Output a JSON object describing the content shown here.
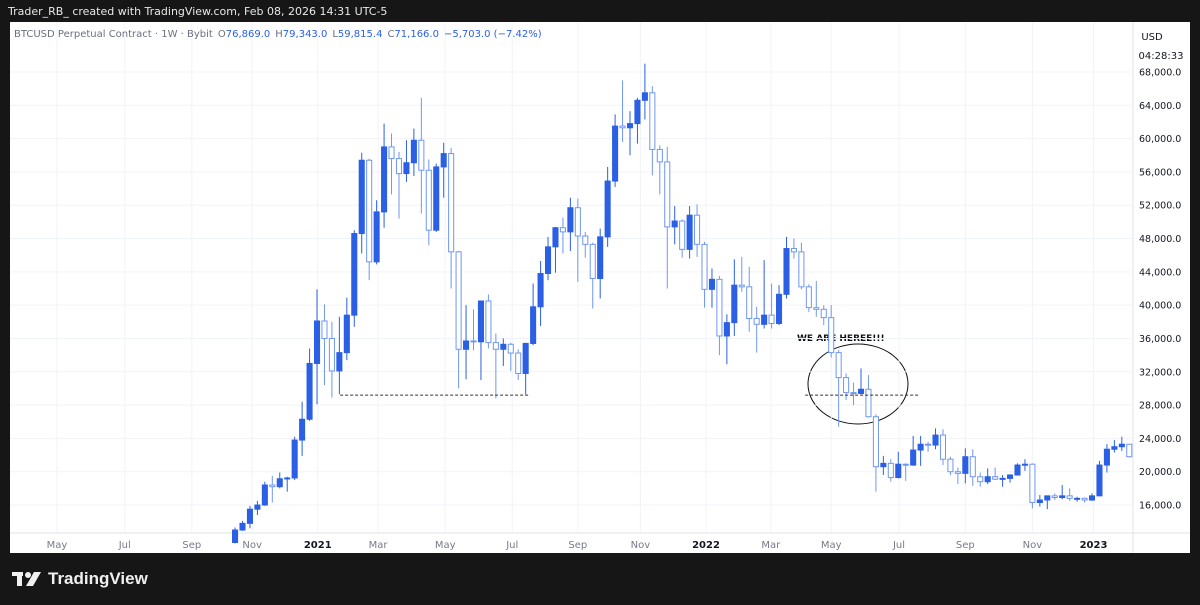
{
  "header": "Trader_RB_ created with TradingView.com, Feb 08, 2026 14:31 UTC-5",
  "footer_brand": "TradingView",
  "chart_data": {
    "type": "candlestick",
    "title": "BTCUSD Perpetual Contract · 1W · Bybit",
    "legend_values": [
      {
        "key": "O",
        "value": "76,869.0"
      },
      {
        "key": "H",
        "value": "79,343.0"
      },
      {
        "key": "L",
        "value": "59,815.4"
      },
      {
        "key": "C",
        "value": "71,166.0"
      }
    ],
    "change": "−5,703.0 (−7.42%)",
    "currency": "USD",
    "countdown": "04:28:33",
    "annotation": "WE ARE HEREE!!!",
    "up_color": "#2b5fe4",
    "down_color": "#6f97f2",
    "grid": true,
    "xlim": [
      -30.2,
      120.5
    ],
    "ylim": [
      12640,
      72080
    ],
    "xticks": [
      {
        "value": -23.9,
        "label": "May"
      },
      {
        "value": -14.8,
        "label": "Jul"
      },
      {
        "value": -5.8,
        "label": "Sep"
      },
      {
        "value": 2.3,
        "label": "Nov"
      },
      {
        "value": 11.1,
        "label": "2021"
      },
      {
        "value": 19.2,
        "label": "Mar"
      },
      {
        "value": 28.2,
        "label": "May"
      },
      {
        "value": 37.2,
        "label": "Jul"
      },
      {
        "value": 46,
        "label": "Sep"
      },
      {
        "value": 54.4,
        "label": "Nov"
      },
      {
        "value": 63.2,
        "label": "2022"
      },
      {
        "value": 71.9,
        "label": "Mar"
      },
      {
        "value": 80,
        "label": "May"
      },
      {
        "value": 89.1,
        "label": "Jul"
      },
      {
        "value": 98,
        "label": "Sep"
      },
      {
        "value": 107,
        "label": "Nov"
      },
      {
        "value": 115.2,
        "label": "2023"
      }
    ],
    "yticks": [
      {
        "value": 16000,
        "label": "16,000.0"
      },
      {
        "value": 20000,
        "label": "20,000.0"
      },
      {
        "value": 24000,
        "label": "24,000.0"
      },
      {
        "value": 28000,
        "label": "28,000.0"
      },
      {
        "value": 32000,
        "label": "32,000.0"
      },
      {
        "value": 36000,
        "label": "36,000.0"
      },
      {
        "value": 40000,
        "label": "40,000.0"
      },
      {
        "value": 44000,
        "label": "44,000.0"
      },
      {
        "value": 48000,
        "label": "48,000.0"
      },
      {
        "value": 52000,
        "label": "52,000.0"
      },
      {
        "value": 56000,
        "label": "56,000.0"
      },
      {
        "value": 60000,
        "label": "60,000.0"
      },
      {
        "value": 64000,
        "label": "64,000.0"
      },
      {
        "value": 68000,
        "label": "68,000.0"
      }
    ],
    "hline": {
      "value": 29200,
      "x_ranges": [
        [
          14.1,
          39.6
        ],
        [
          76.5,
          91.7
        ]
      ]
    },
    "ohlc": [
      [
        11500,
        13300,
        11400,
        13000
      ],
      [
        13000,
        14100,
        12900,
        13800
      ],
      [
        13800,
        15900,
        13200,
        15500
      ],
      [
        15500,
        16500,
        14800,
        16000
      ],
      [
        16000,
        18800,
        15900,
        18400
      ],
      [
        18400,
        19500,
        16300,
        18200
      ],
      [
        18200,
        19900,
        18000,
        19150
      ],
      [
        19150,
        19400,
        17600,
        19250
      ],
      [
        19250,
        24200,
        19000,
        23800
      ],
      [
        23800,
        28400,
        21900,
        26300
      ],
      [
        26300,
        34800,
        26100,
        33000
      ],
      [
        33000,
        41900,
        28100,
        38100
      ],
      [
        38100,
        40100,
        30400,
        36000
      ],
      [
        36000,
        38000,
        28900,
        32100
      ],
      [
        32100,
        38600,
        29300,
        34300
      ],
      [
        34300,
        40900,
        33400,
        38800
      ],
      [
        38800,
        49000,
        37400,
        48600
      ],
      [
        48600,
        58300,
        46200,
        57400
      ],
      [
        57400,
        57600,
        43000,
        45200
      ],
      [
        45200,
        52600,
        44900,
        51200
      ],
      [
        51200,
        61800,
        49300,
        59000
      ],
      [
        59000,
        60600,
        53300,
        57600
      ],
      [
        57600,
        58400,
        50400,
        55800
      ],
      [
        55800,
        59800,
        54800,
        57100
      ],
      [
        57100,
        61200,
        55500,
        59800
      ],
      [
        59800,
        64900,
        51000,
        56200
      ],
      [
        56200,
        57500,
        47200,
        49000
      ],
      [
        49000,
        57000,
        48800,
        56600
      ],
      [
        56600,
        59500,
        52900,
        58200
      ],
      [
        58200,
        58900,
        42000,
        46400
      ],
      [
        46400,
        46500,
        30000,
        34700
      ],
      [
        34700,
        40000,
        31100,
        35700
      ],
      [
        35700,
        39500,
        34600,
        35600
      ],
      [
        35600,
        40500,
        31000,
        40500
      ],
      [
        40500,
        41300,
        34800,
        35500
      ],
      [
        35500,
        36600,
        28800,
        34700
      ],
      [
        34700,
        36000,
        32700,
        35300
      ],
      [
        35300,
        35500,
        32100,
        34250
      ],
      [
        34250,
        34700,
        31000,
        31800
      ],
      [
        31800,
        35500,
        29300,
        35400
      ],
      [
        35400,
        42600,
        35200,
        39800
      ],
      [
        39800,
        45300,
        37500,
        43800
      ],
      [
        43800,
        48200,
        43000,
        47000
      ],
      [
        47000,
        49400,
        43900,
        49300
      ],
      [
        49300,
        50500,
        46200,
        48800
      ],
      [
        48800,
        52900,
        46500,
        51700
      ],
      [
        51700,
        52800,
        42800,
        48300
      ],
      [
        48300,
        48800,
        45700,
        47300
      ],
      [
        47300,
        47500,
        39600,
        43200
      ],
      [
        43200,
        49200,
        40800,
        48200
      ],
      [
        48200,
        56600,
        47000,
        54900
      ],
      [
        54900,
        62900,
        54200,
        61500
      ],
      [
        61500,
        67000,
        59600,
        61300
      ],
      [
        61300,
        63300,
        58000,
        61800
      ],
      [
        61800,
        64900,
        59400,
        64600
      ],
      [
        64600,
        69000,
        62300,
        65500
      ],
      [
        65500,
        66300,
        55600,
        58700
      ],
      [
        58700,
        59200,
        53300,
        57200
      ],
      [
        57200,
        59000,
        42000,
        49400
      ],
      [
        49400,
        51900,
        47300,
        50100
      ],
      [
        50100,
        50300,
        45700,
        46700
      ],
      [
        46700,
        51900,
        45600,
        50800
      ],
      [
        50800,
        52100,
        45800,
        47300
      ],
      [
        47300,
        47600,
        39700,
        41900
      ],
      [
        41900,
        44400,
        39700,
        43100
      ],
      [
        43100,
        43500,
        34000,
        36300
      ],
      [
        36300,
        38900,
        32900,
        37900
      ],
      [
        37900,
        45500,
        36300,
        42400
      ],
      [
        42400,
        45800,
        41600,
        42200
      ],
      [
        42200,
        44600,
        36800,
        38400
      ],
      [
        38400,
        39800,
        34300,
        37700
      ],
      [
        37700,
        45400,
        37200,
        38800
      ],
      [
        38800,
        42600,
        37200,
        37800
      ],
      [
        37800,
        42400,
        37600,
        41300
      ],
      [
        41300,
        48200,
        40800,
        46800
      ],
      [
        46800,
        48000,
        45600,
        46400
      ],
      [
        46400,
        47500,
        41900,
        42200
      ],
      [
        42200,
        42500,
        39200,
        39700
      ],
      [
        39700,
        42900,
        38600,
        39500
      ],
      [
        39500,
        40000,
        37600,
        38500
      ],
      [
        38500,
        40000,
        33700,
        34300
      ],
      [
        34300,
        34600,
        25400,
        31300
      ],
      [
        31300,
        31800,
        28600,
        29500
      ],
      [
        29500,
        30700,
        28000,
        29400
      ],
      [
        29400,
        32400,
        29300,
        29900
      ],
      [
        29900,
        31600,
        26500,
        26600
      ],
      [
        26600,
        26900,
        17600,
        20600
      ],
      [
        20600,
        21900,
        19600,
        21000
      ],
      [
        21000,
        21500,
        18800,
        19300
      ],
      [
        19300,
        22400,
        19200,
        20900
      ],
      [
        20900,
        21000,
        18900,
        20800
      ],
      [
        20800,
        24300,
        20700,
        22600
      ],
      [
        22600,
        24300,
        20700,
        23300
      ],
      [
        23300,
        23600,
        22400,
        23200
      ],
      [
        23200,
        25200,
        22700,
        24400
      ],
      [
        24400,
        25100,
        20800,
        21500
      ],
      [
        21500,
        21800,
        19600,
        20000
      ],
      [
        20000,
        20500,
        18500,
        19800
      ],
      [
        19800,
        22800,
        18600,
        21800
      ],
      [
        21800,
        22700,
        18300,
        19400
      ],
      [
        19400,
        19900,
        18200,
        18800
      ],
      [
        18800,
        20400,
        18500,
        19400
      ],
      [
        19400,
        20500,
        19000,
        19100
      ],
      [
        19100,
        19600,
        18200,
        19200
      ],
      [
        19200,
        19700,
        18700,
        19600
      ],
      [
        19600,
        21000,
        19600,
        20800
      ],
      [
        20800,
        21500,
        20100,
        20900
      ],
      [
        20900,
        21000,
        15600,
        16300
      ],
      [
        16300,
        17200,
        15800,
        16600
      ],
      [
        16600,
        16900,
        15500,
        17100
      ],
      [
        17100,
        17400,
        16600,
        16900
      ],
      [
        16900,
        18400,
        16700,
        17100
      ],
      [
        17100,
        18000,
        16500,
        16800
      ],
      [
        16800,
        17000,
        16400,
        16800
      ],
      [
        16800,
        16900,
        16300,
        16600
      ],
      [
        16600,
        17400,
        16500,
        17100
      ],
      [
        17100,
        21300,
        17100,
        20800
      ],
      [
        20800,
        23300,
        19900,
        22700
      ],
      [
        22700,
        23800,
        22300,
        23000
      ],
      [
        23000,
        24200,
        22500,
        23300
      ],
      [
        23300,
        23300,
        21700,
        21800
      ]
    ]
  }
}
